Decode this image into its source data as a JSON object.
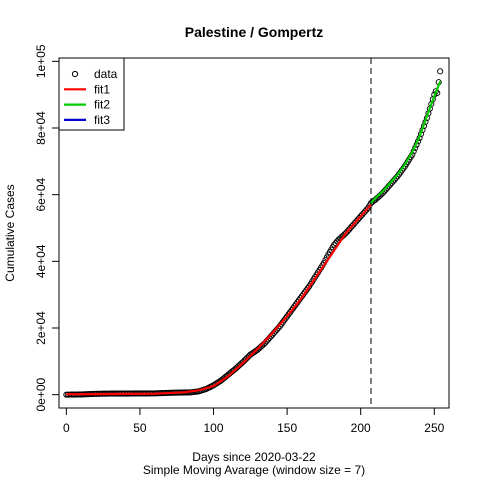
{
  "chart_data": {
    "type": "scatter",
    "title": "Palestine / Gompertz",
    "xlabel": "Days since 2020-03-22",
    "xlabel2": "Simple Moving Avarage (window size = 7)",
    "ylabel": "Cumulative Cases",
    "xlim": [
      -5,
      260
    ],
    "ylim": [
      -4000,
      101000
    ],
    "x_ticks": [
      0,
      50,
      100,
      150,
      200,
      250
    ],
    "x_tick_labels": [
      "0",
      "50",
      "100",
      "150",
      "200",
      "250"
    ],
    "y_ticks": [
      0,
      20000,
      40000,
      60000,
      80000,
      100000
    ],
    "y_tick_labels": [
      "0e+00",
      "2e+04",
      "4e+04",
      "6e+04",
      "8e+04",
      "1e+05"
    ],
    "vline_x": 207,
    "legend": {
      "position": "top-left",
      "entries": [
        {
          "label": "data",
          "kind": "point",
          "color": "#000000"
        },
        {
          "label": "fit1",
          "kind": "line",
          "color": "#ff0000"
        },
        {
          "label": "fit2",
          "kind": "line",
          "color": "#00cc00"
        },
        {
          "label": "fit3",
          "kind": "line",
          "color": "#0000cc"
        }
      ]
    },
    "data_anchors": [
      [
        0,
        0
      ],
      [
        10,
        60
      ],
      [
        20,
        250
      ],
      [
        30,
        320
      ],
      [
        40,
        330
      ],
      [
        50,
        370
      ],
      [
        60,
        390
      ],
      [
        70,
        550
      ],
      [
        80,
        650
      ],
      [
        85,
        700
      ],
      [
        90,
        1000
      ],
      [
        95,
        1700
      ],
      [
        100,
        2800
      ],
      [
        105,
        4200
      ],
      [
        110,
        6000
      ],
      [
        115,
        7800
      ],
      [
        120,
        9800
      ],
      [
        125,
        12000
      ],
      [
        130,
        13500
      ],
      [
        135,
        15500
      ],
      [
        140,
        18000
      ],
      [
        145,
        20500
      ],
      [
        150,
        23500
      ],
      [
        155,
        26500
      ],
      [
        160,
        29500
      ],
      [
        165,
        32500
      ],
      [
        170,
        36000
      ],
      [
        175,
        39500
      ],
      [
        178,
        42000
      ],
      [
        182,
        45000
      ],
      [
        185,
        46500
      ],
      [
        190,
        48500
      ],
      [
        195,
        51000
      ],
      [
        200,
        53500
      ],
      [
        205,
        56000
      ],
      [
        207,
        57500
      ],
      [
        210,
        58500
      ],
      [
        215,
        60500
      ],
      [
        220,
        63000
      ],
      [
        225,
        65500
      ],
      [
        230,
        68500
      ],
      [
        235,
        72000
      ],
      [
        240,
        77000
      ],
      [
        245,
        83000
      ],
      [
        250,
        90000
      ],
      [
        251,
        91000
      ],
      [
        252,
        90500
      ],
      [
        254,
        97000
      ]
    ],
    "data_range": [
      0,
      254
    ],
    "fit1": {
      "color": "#ff0000",
      "points": [
        [
          0,
          150
        ],
        [
          20,
          180
        ],
        [
          40,
          220
        ],
        [
          60,
          300
        ],
        [
          80,
          700
        ],
        [
          90,
          1300
        ],
        [
          100,
          2600
        ],
        [
          110,
          5500
        ],
        [
          120,
          9500
        ],
        [
          130,
          13800
        ],
        [
          140,
          18500
        ],
        [
          150,
          23500
        ],
        [
          160,
          29000
        ],
        [
          170,
          35500
        ],
        [
          180,
          42000
        ],
        [
          190,
          48500
        ],
        [
          200,
          53500
        ],
        [
          207,
          57000
        ]
      ]
    },
    "fit2": {
      "color": "#00cc00",
      "points": [
        [
          207,
          57500
        ],
        [
          210,
          59000
        ],
        [
          215,
          61000
        ],
        [
          220,
          63500
        ],
        [
          225,
          66000
        ],
        [
          230,
          69000
        ],
        [
          235,
          72800
        ],
        [
          240,
          77500
        ],
        [
          245,
          83500
        ],
        [
          250,
          89500
        ],
        [
          254,
          94000
        ]
      ]
    }
  }
}
